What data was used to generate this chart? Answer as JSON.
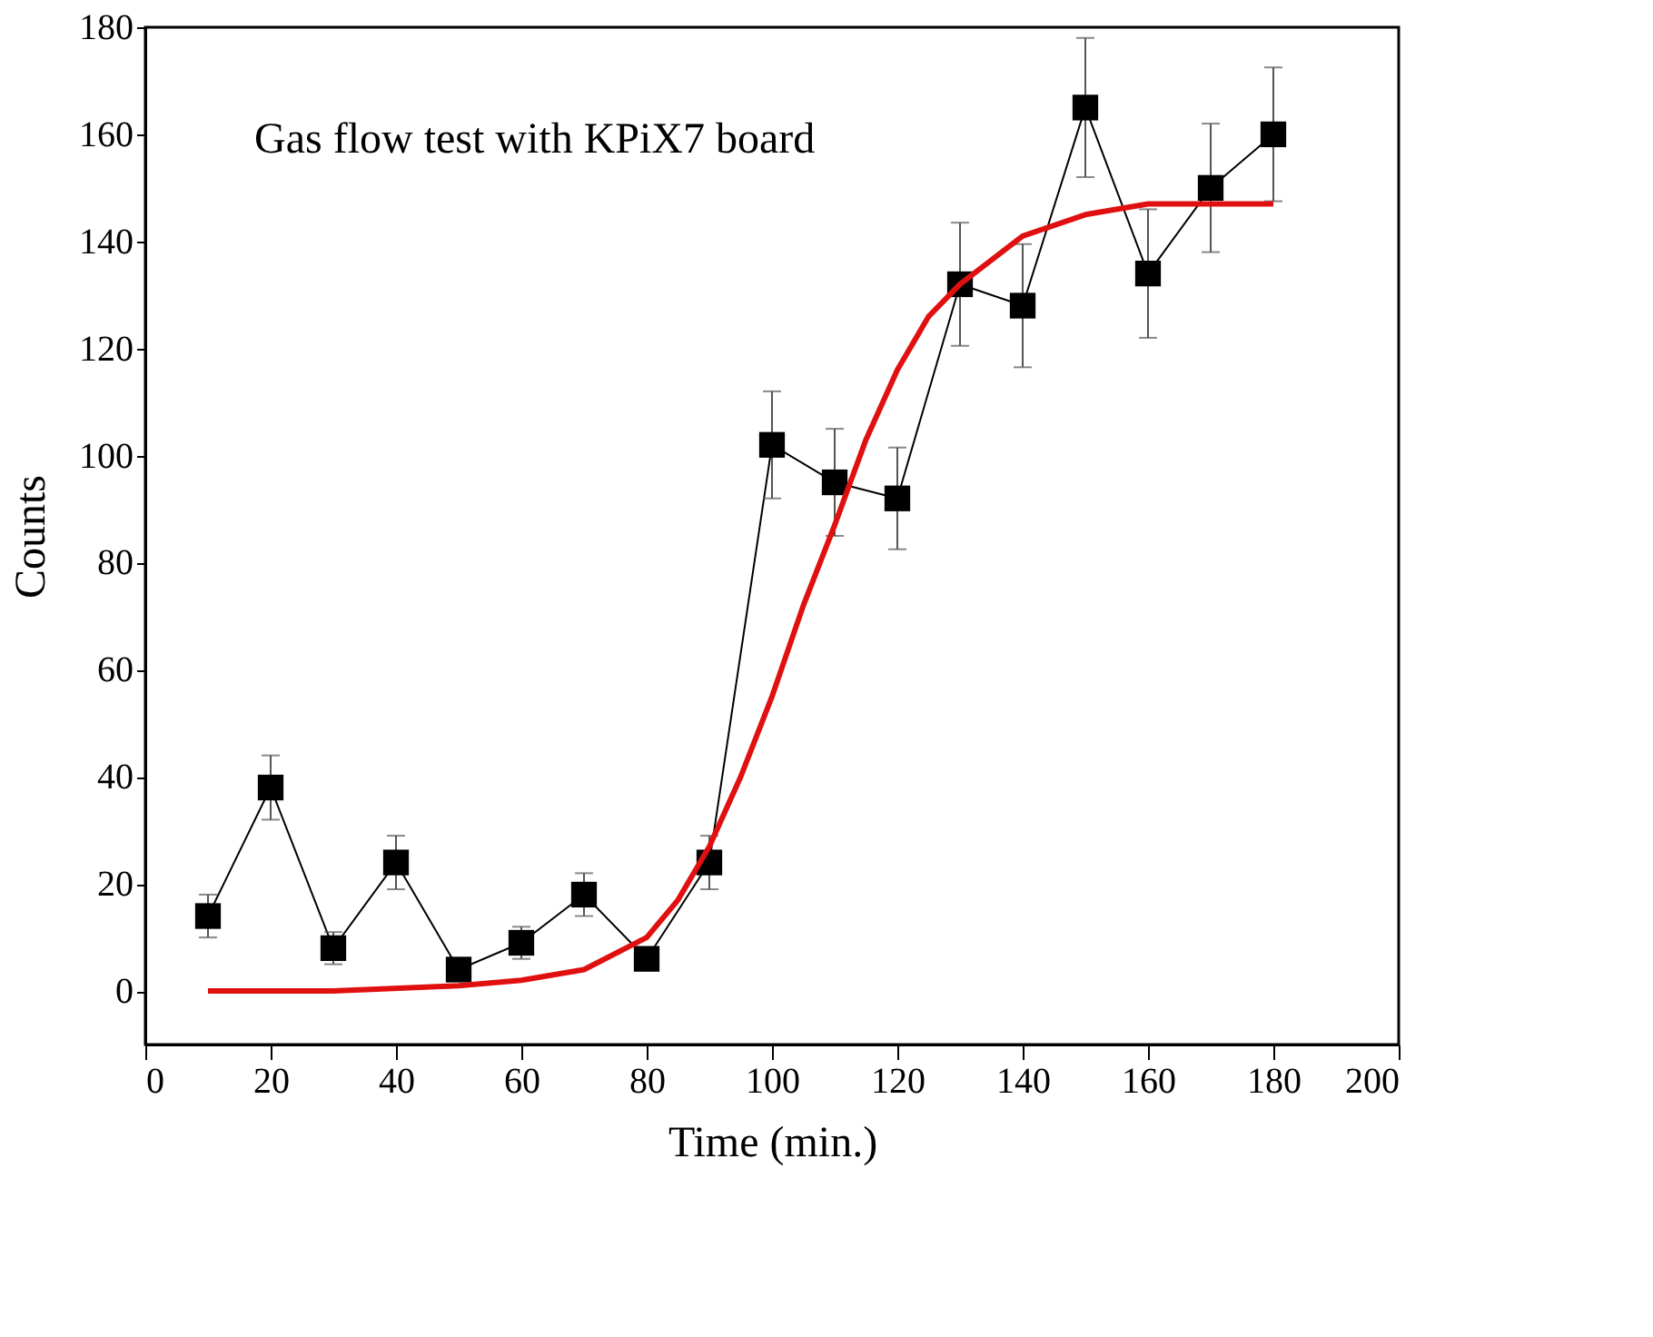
{
  "chart_data": {
    "type": "line",
    "title": "Gas flow test with KPiX7 board",
    "xlabel": "Time (min.)",
    "ylabel": "Counts",
    "xlim": [
      0,
      200
    ],
    "xticks": [
      0,
      20,
      40,
      60,
      80,
      100,
      120,
      140,
      160,
      180,
      200
    ],
    "ylim": [
      -10,
      180
    ],
    "yticks": [
      0,
      20,
      40,
      60,
      80,
      100,
      120,
      140,
      160,
      180
    ],
    "grid": false,
    "series": [
      {
        "color": "#000000",
        "marker": "square",
        "x": [
          10,
          20,
          30,
          40,
          50,
          60,
          70,
          80,
          90,
          100,
          110,
          120,
          130,
          140,
          150,
          160,
          170,
          180
        ],
        "values": [
          14,
          38,
          8,
          24,
          4,
          9,
          18,
          6,
          24,
          102,
          95,
          92,
          132,
          128,
          165,
          134,
          150,
          160
        ],
        "errors": [
          4,
          6,
          3,
          5,
          2,
          3,
          4,
          2,
          5,
          10,
          10,
          9.5,
          11.5,
          11.5,
          13,
          12,
          12,
          12.5
        ]
      },
      {
        "color": "#e01010",
        "marker": "none",
        "x": [
          10,
          30,
          50,
          60,
          70,
          80,
          85,
          90,
          95,
          100,
          105,
          110,
          115,
          120,
          125,
          130,
          140,
          150,
          160,
          170,
          180
        ],
        "values": [
          0,
          0,
          1,
          2,
          4,
          10,
          17,
          27,
          40,
          55,
          72,
          87,
          103,
          116,
          126,
          132,
          141,
          145,
          147,
          147,
          147
        ]
      }
    ]
  }
}
